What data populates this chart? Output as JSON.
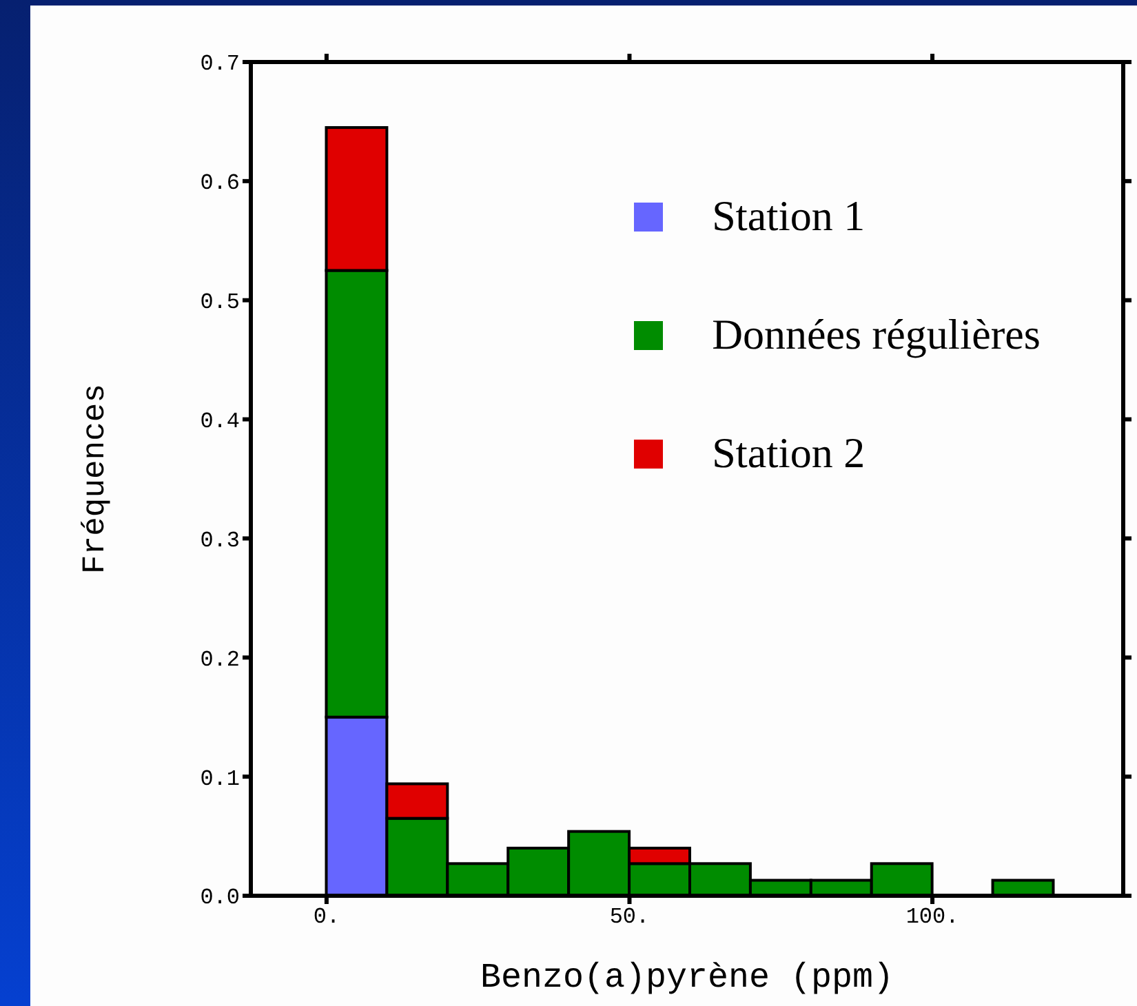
{
  "chart_data": {
    "type": "bar",
    "xlabel": "Benzo(a)pyrène (ppm)",
    "ylabel": "Fréquences",
    "x": [
      5,
      15,
      25,
      35,
      45,
      55,
      65,
      75,
      85,
      95,
      105,
      115
    ],
    "stacked": true,
    "series": [
      {
        "name": "Station 1",
        "color": "#6666ff",
        "values": [
          0.15,
          0,
          0,
          0,
          0,
          0,
          0,
          0,
          0,
          0,
          0,
          0
        ]
      },
      {
        "name": "Données régulières",
        "color": "#008c00",
        "values": [
          0.375,
          0.065,
          0.027,
          0.04,
          0.054,
          0.027,
          0.027,
          0.013,
          0.013,
          0.027,
          0,
          0.013
        ]
      },
      {
        "name": "Station 2",
        "color": "#e00000",
        "values": [
          0.12,
          0.029,
          0,
          0,
          0,
          0.013,
          0,
          0,
          0,
          0,
          0,
          0
        ]
      }
    ],
    "xlim": [
      -12.5,
      131.5
    ],
    "xticks": [
      {
        "value": 0,
        "label": "0."
      },
      {
        "value": 50,
        "label": "50."
      },
      {
        "value": 100,
        "label": "100."
      }
    ],
    "ylim": [
      0,
      0.7
    ],
    "yticks": [
      {
        "value": 0,
        "label": "0.0"
      },
      0.1,
      0.2,
      0.3,
      0.4,
      0.5,
      0.6,
      0.7
    ],
    "legend": "top right"
  }
}
